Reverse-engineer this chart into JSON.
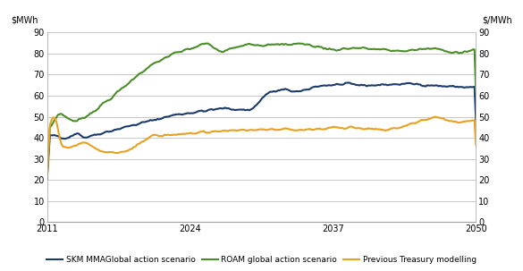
{
  "ylabel_left": "$MWh",
  "ylabel_right": "$/MWh",
  "xlim": [
    2011,
    2050
  ],
  "ylim": [
    0,
    90
  ],
  "yticks": [
    0,
    10,
    20,
    30,
    40,
    50,
    60,
    70,
    80,
    90
  ],
  "xticks": [
    2011,
    2024,
    2037,
    2050
  ],
  "skm_color": "#1a3a6b",
  "roam_color": "#4a8e2a",
  "prev_color": "#e8a020",
  "linewidth": 1.5,
  "background_color": "#ffffff",
  "grid_color": "#b0b0b0",
  "legend_labels": [
    "SKM MMAGlobal action scenario",
    "ROAM global action scenario",
    "Previous Treasury modelling"
  ]
}
